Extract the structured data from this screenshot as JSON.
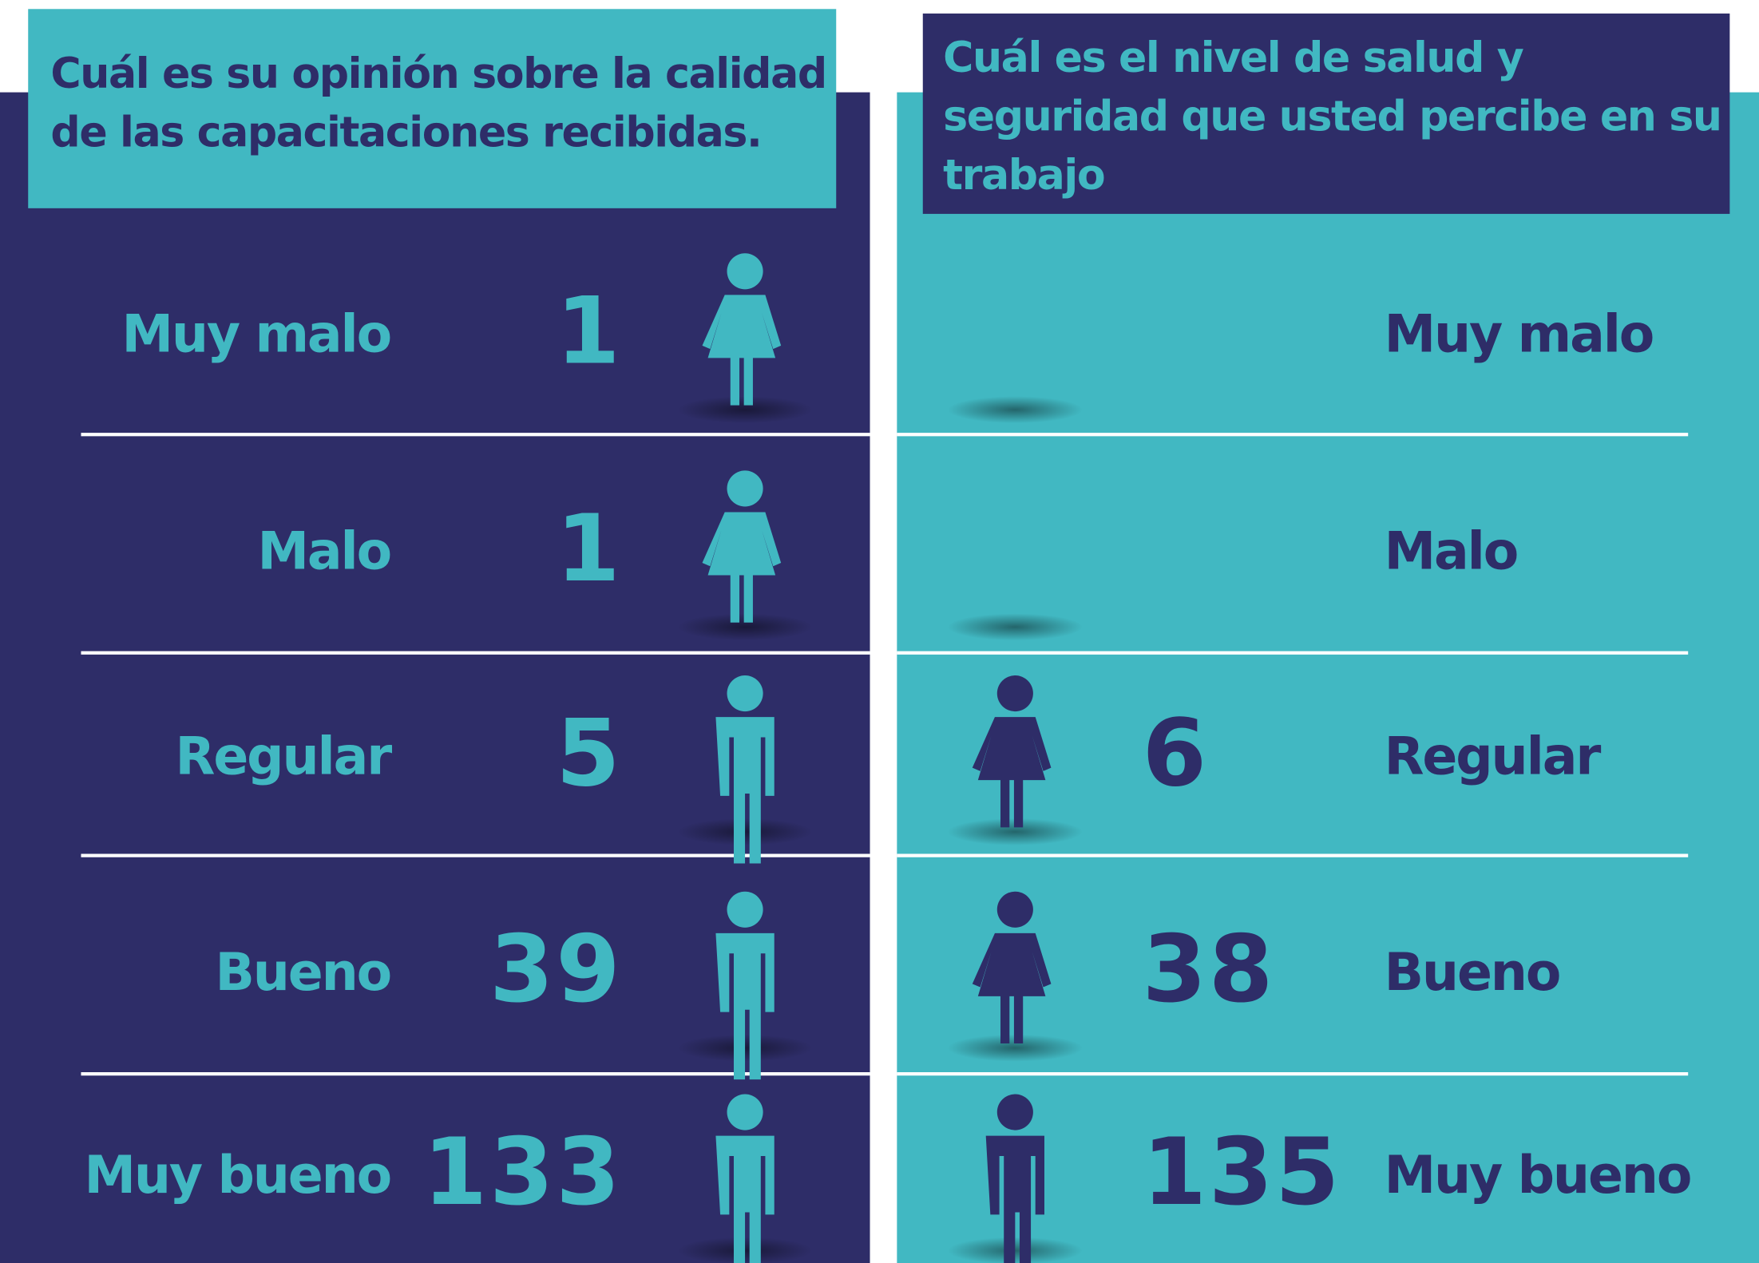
{
  "panels": [
    {
      "title": [
        "Cuál es su opinión sobre la calidad",
        "de las capacitaciones recibidas."
      ],
      "rows": [
        {
          "label": "Muy malo",
          "value": "1"
        },
        {
          "label": "Malo",
          "value": "1"
        },
        {
          "label": "Regular",
          "value": "5"
        },
        {
          "label": "Bueno",
          "value": "39"
        },
        {
          "label": "Muy bueno",
          "value": "133"
        }
      ]
    },
    {
      "title": [
        "Cuál es el nivel de salud y",
        "seguridad que usted percibe en su",
        "trabajo"
      ],
      "rows": [
        {
          "label": "Muy malo"
        },
        {
          "label": "Malo"
        },
        {
          "label": "Regular",
          "value": "6"
        },
        {
          "label": "Bueno",
          "value": "38"
        },
        {
          "label": "Muy bueno",
          "value": "135"
        }
      ]
    }
  ]
}
